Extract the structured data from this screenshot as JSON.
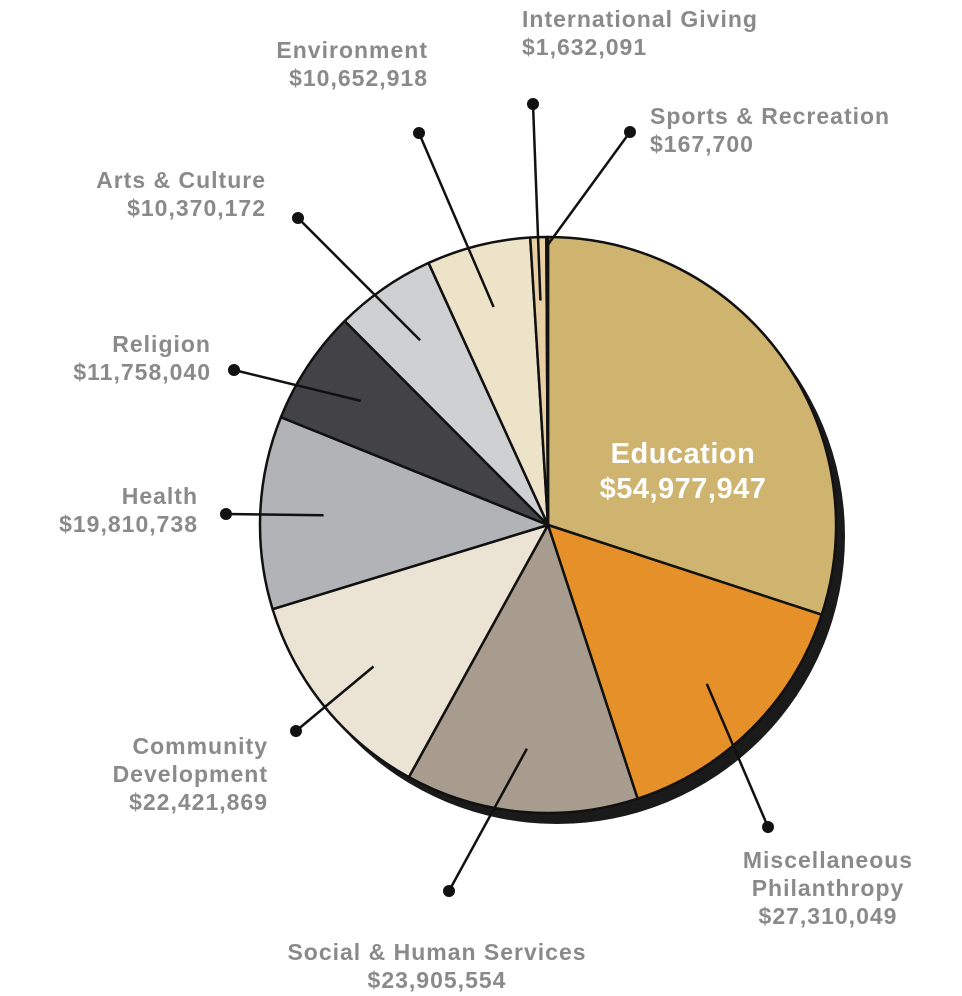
{
  "chart_data": {
    "type": "pie",
    "slices": [
      {
        "lines": [
          "Education",
          "$54,977,947"
        ],
        "value": 54977947,
        "color": "#cfb46f"
      },
      {
        "lines": [
          "Miscellaneous",
          "Philanthropy",
          "$27,310,049"
        ],
        "value": 27310049,
        "color": "#e6902a"
      },
      {
        "lines": [
          "Social & Human Services",
          "$23,905,554"
        ],
        "value": 23905554,
        "color": "#a89c8e"
      },
      {
        "lines": [
          "Community",
          "Development",
          "$22,421,869"
        ],
        "value": 22421869,
        "color": "#ebe3d4"
      },
      {
        "lines": [
          "Health",
          "$19,810,738"
        ],
        "value": 19810738,
        "color": "#b2b3b6"
      },
      {
        "lines": [
          "Religion",
          "$11,758,040"
        ],
        "value": 11758040,
        "color": "#434246"
      },
      {
        "lines": [
          "Arts & Culture",
          "$10,370,172"
        ],
        "value": 10370172,
        "color": "#cfd0d2"
      },
      {
        "lines": [
          "Environment",
          "$10,652,918"
        ],
        "value": 10652918,
        "color": "#ede3c9"
      },
      {
        "lines": [
          "International Giving",
          "$1,632,091"
        ],
        "value": 1632091,
        "color": "#e8cfa6"
      },
      {
        "lines": [
          "Sports & Recreation",
          "$167,700"
        ],
        "value": 167700,
        "color": "#d8c498"
      }
    ]
  }
}
